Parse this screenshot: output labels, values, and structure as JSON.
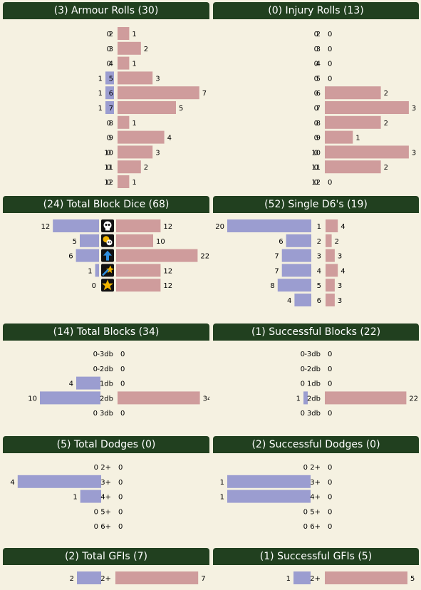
{
  "colors": {
    "header_bg": "#21401f",
    "left_bar": "#9b9dd0",
    "right_bar": "#cf9c9c",
    "page_bg": "#f5f1e1"
  },
  "chart_data": [
    {
      "type": "bar",
      "title": "(3) Armour Rolls (30)",
      "categories": [
        "2",
        "3",
        "4",
        "5",
        "6",
        "7",
        "8",
        "9",
        "10",
        "11",
        "12"
      ],
      "series": [
        {
          "values": [
            0,
            0,
            0,
            1,
            1,
            1,
            0,
            0,
            0,
            0,
            0
          ]
        },
        {
          "values": [
            1,
            2,
            1,
            3,
            7,
            5,
            1,
            4,
            3,
            2,
            1
          ]
        }
      ]
    },
    {
      "type": "bar",
      "title": "(0) Injury Rolls (13)",
      "categories": [
        "2",
        "3",
        "4",
        "5",
        "6",
        "7",
        "8",
        "9",
        "10",
        "11",
        "12"
      ],
      "series": [
        {
          "values": [
            0,
            0,
            0,
            0,
            0,
            0,
            0,
            0,
            0,
            0,
            0
          ]
        },
        {
          "values": [
            0,
            0,
            0,
            0,
            2,
            3,
            2,
            1,
            3,
            2,
            0
          ]
        }
      ]
    },
    {
      "type": "bar",
      "title": "(24) Total Block Dice (68)",
      "categories": [
        "skull-icon",
        "both-down-icon",
        "push-icon",
        "stumble-icon",
        "pow-icon"
      ],
      "series": [
        {
          "values": [
            12,
            5,
            6,
            1,
            0
          ]
        },
        {
          "values": [
            12,
            10,
            22,
            12,
            12
          ]
        }
      ]
    },
    {
      "type": "bar",
      "title": "(52) Single D6's (19)",
      "categories": [
        "1",
        "2",
        "3",
        "4",
        "5",
        "6"
      ],
      "series": [
        {
          "values": [
            20,
            6,
            7,
            7,
            8,
            4
          ]
        },
        {
          "values": [
            4,
            2,
            3,
            4,
            3,
            3
          ]
        }
      ]
    },
    {
      "type": "bar",
      "title": "(14) Total Blocks (34)",
      "categories": [
        "-3db",
        "-2db",
        "1db",
        "2db",
        "3db"
      ],
      "series": [
        {
          "values": [
            0,
            0,
            4,
            10,
            0
          ]
        },
        {
          "values": [
            0,
            0,
            0,
            34,
            0
          ]
        }
      ]
    },
    {
      "type": "bar",
      "title": "(1) Successful Blocks (22)",
      "categories": [
        "-3db",
        "-2db",
        "1db",
        "2db",
        "3db"
      ],
      "series": [
        {
          "values": [
            0,
            0,
            0,
            1,
            0
          ]
        },
        {
          "values": [
            0,
            0,
            0,
            22,
            0
          ]
        }
      ]
    },
    {
      "type": "bar",
      "title": "(5) Total Dodges (0)",
      "categories": [
        "2+",
        "3+",
        "4+",
        "5+",
        "6+"
      ],
      "series": [
        {
          "values": [
            0,
            4,
            1,
            0,
            0
          ]
        },
        {
          "values": [
            0,
            0,
            0,
            0,
            0
          ]
        }
      ]
    },
    {
      "type": "bar",
      "title": "(2) Successful Dodges (0)",
      "categories": [
        "2+",
        "3+",
        "4+",
        "5+",
        "6+"
      ],
      "series": [
        {
          "values": [
            0,
            1,
            1,
            0,
            0
          ]
        },
        {
          "values": [
            0,
            0,
            0,
            0,
            0
          ]
        }
      ]
    },
    {
      "type": "bar",
      "title": "(2) Total GFIs (7)",
      "categories": [
        "2+"
      ],
      "series": [
        {
          "values": [
            2
          ]
        },
        {
          "values": [
            7
          ]
        }
      ]
    },
    {
      "type": "bar",
      "title": "(1) Successful GFIs (5)",
      "categories": [
        "2+"
      ],
      "series": [
        {
          "values": [
            1
          ]
        },
        {
          "values": [
            5
          ]
        }
      ]
    }
  ]
}
